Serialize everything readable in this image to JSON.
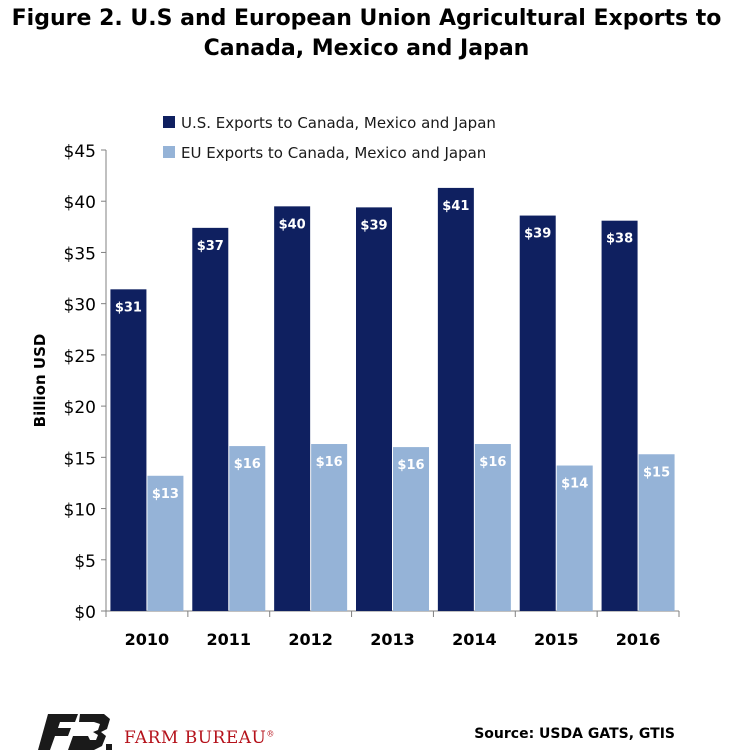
{
  "title_line1": "Figure 2. U.S and European Union Agricultural Exports to",
  "title_line2": "Canada, Mexico and Japan",
  "source": "Source: USDA GATS, GTIS",
  "brand": {
    "name": "FARM BUREAU",
    "mark": "®",
    "color": "#b5121b",
    "logo_icon": "farm-bureau-fb-logo"
  },
  "colors": {
    "us": "#0f2060",
    "eu": "#95b3d7",
    "axis": "#808080"
  },
  "chart_data": {
    "type": "bar",
    "categories": [
      "2010",
      "2011",
      "2012",
      "2013",
      "2014",
      "2015",
      "2016"
    ],
    "series": [
      {
        "name": "U.S. Exports to Canada, Mexico and Japan",
        "values": [
          31.4,
          37.4,
          39.5,
          39.4,
          41.3,
          38.6,
          38.1
        ],
        "labels": [
          "$31",
          "$37",
          "$40",
          "$39",
          "$41",
          "$39",
          "$38"
        ]
      },
      {
        "name": "EU Exports to Canada, Mexico and Japan",
        "values": [
          13.2,
          16.1,
          16.3,
          16.0,
          16.3,
          14.2,
          15.3
        ],
        "labels": [
          "$13",
          "$16",
          "$16",
          "$16",
          "$16",
          "$14",
          "$15"
        ]
      }
    ],
    "ylabel": "Billion USD",
    "ylim": [
      0,
      45
    ],
    "yticks": [
      0,
      5,
      10,
      15,
      20,
      25,
      30,
      35,
      40,
      45
    ],
    "ytick_labels": [
      "$0",
      "$5",
      "$10",
      "$15",
      "$20",
      "$25",
      "$30",
      "$35",
      "$40",
      "$45"
    ],
    "legend_position": "top",
    "grid": false
  }
}
